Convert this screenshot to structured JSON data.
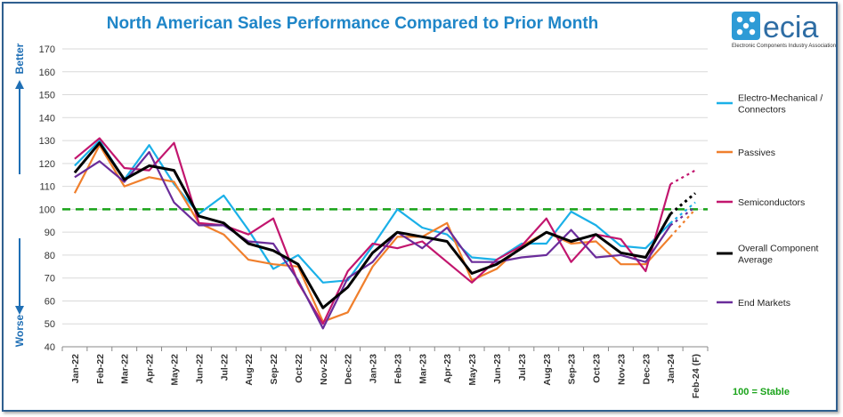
{
  "logo": {
    "name": "ecia",
    "subtitle": "Electronic Components Industry Association"
  },
  "side_labels": {
    "better": "Better",
    "worse": "Worse"
  },
  "stable_note": "100 = Stable",
  "colors": {
    "electro": "#1ab0e8",
    "passives": "#f07f2c",
    "semis": "#c2166e",
    "overall": "#000000",
    "end": "#6a2c9a",
    "reference": "#19a319",
    "title": "#1f86c8"
  },
  "chart_data": {
    "type": "line",
    "title": "North American Sales Performance Compared to Prior Month",
    "xlabel": "",
    "ylabel": "",
    "ylim": [
      40,
      170
    ],
    "yticks": [
      40,
      50,
      60,
      70,
      80,
      90,
      100,
      110,
      120,
      130,
      140,
      150,
      160,
      170
    ],
    "grid": true,
    "legend_position": "right",
    "reference_line": 100,
    "categories": [
      "Jan-22",
      "Feb-22",
      "Mar-22",
      "Apr-22",
      "May-22",
      "Jun-22",
      "Jul-22",
      "Aug-22",
      "Sep-22",
      "Oct-22",
      "Nov-22",
      "Dec-22",
      "Jan-23",
      "Feb-23",
      "Mar-23",
      "Apr-23",
      "May-23",
      "Jun-23",
      "Jul-23",
      "Aug-23",
      "Sep-23",
      "Oct-23",
      "Nov-23",
      "Dec-23",
      "Jan-24",
      "Feb-24 (F)"
    ],
    "series": [
      {
        "name": "Electro-Mechanical / Connectors",
        "color": "#1ab0e8",
        "values": [
          119,
          130,
          113,
          128,
          111,
          98,
          106,
          91,
          74,
          80,
          68,
          69,
          84,
          100,
          92,
          89,
          79,
          78,
          85,
          85,
          99,
          93,
          84,
          83,
          94,
          103
        ]
      },
      {
        "name": "Passives",
        "color": "#f07f2c",
        "values": [
          107,
          128,
          110,
          114,
          112,
          94,
          89,
          78,
          76,
          75,
          51,
          55,
          75,
          88,
          88,
          94,
          69,
          74,
          84,
          90,
          85,
          86,
          76,
          76,
          88,
          100
        ]
      },
      {
        "name": "Semiconductors",
        "color": "#c2166e",
        "values": [
          122,
          131,
          118,
          117,
          129,
          94,
          93,
          89,
          96,
          68,
          50,
          73,
          85,
          83,
          86,
          77,
          68,
          78,
          84,
          96,
          77,
          89,
          87,
          73,
          111,
          117
        ]
      },
      {
        "name": "Overall Component Average",
        "color": "#000000",
        "values": [
          116,
          129,
          113,
          119,
          117,
          97,
          94,
          85,
          82,
          76,
          57,
          66,
          81,
          90,
          88,
          86,
          72,
          76,
          83,
          90,
          86,
          89,
          81,
          79,
          98,
          107
        ]
      },
      {
        "name": "End Markets",
        "color": "#6a2c9a",
        "values": [
          114,
          121,
          112,
          125,
          103,
          93,
          93,
          86,
          85,
          69,
          48,
          70,
          77,
          90,
          83,
          92,
          77,
          77,
          79,
          80,
          91,
          79,
          80,
          77,
          93,
          101
        ]
      }
    ]
  }
}
